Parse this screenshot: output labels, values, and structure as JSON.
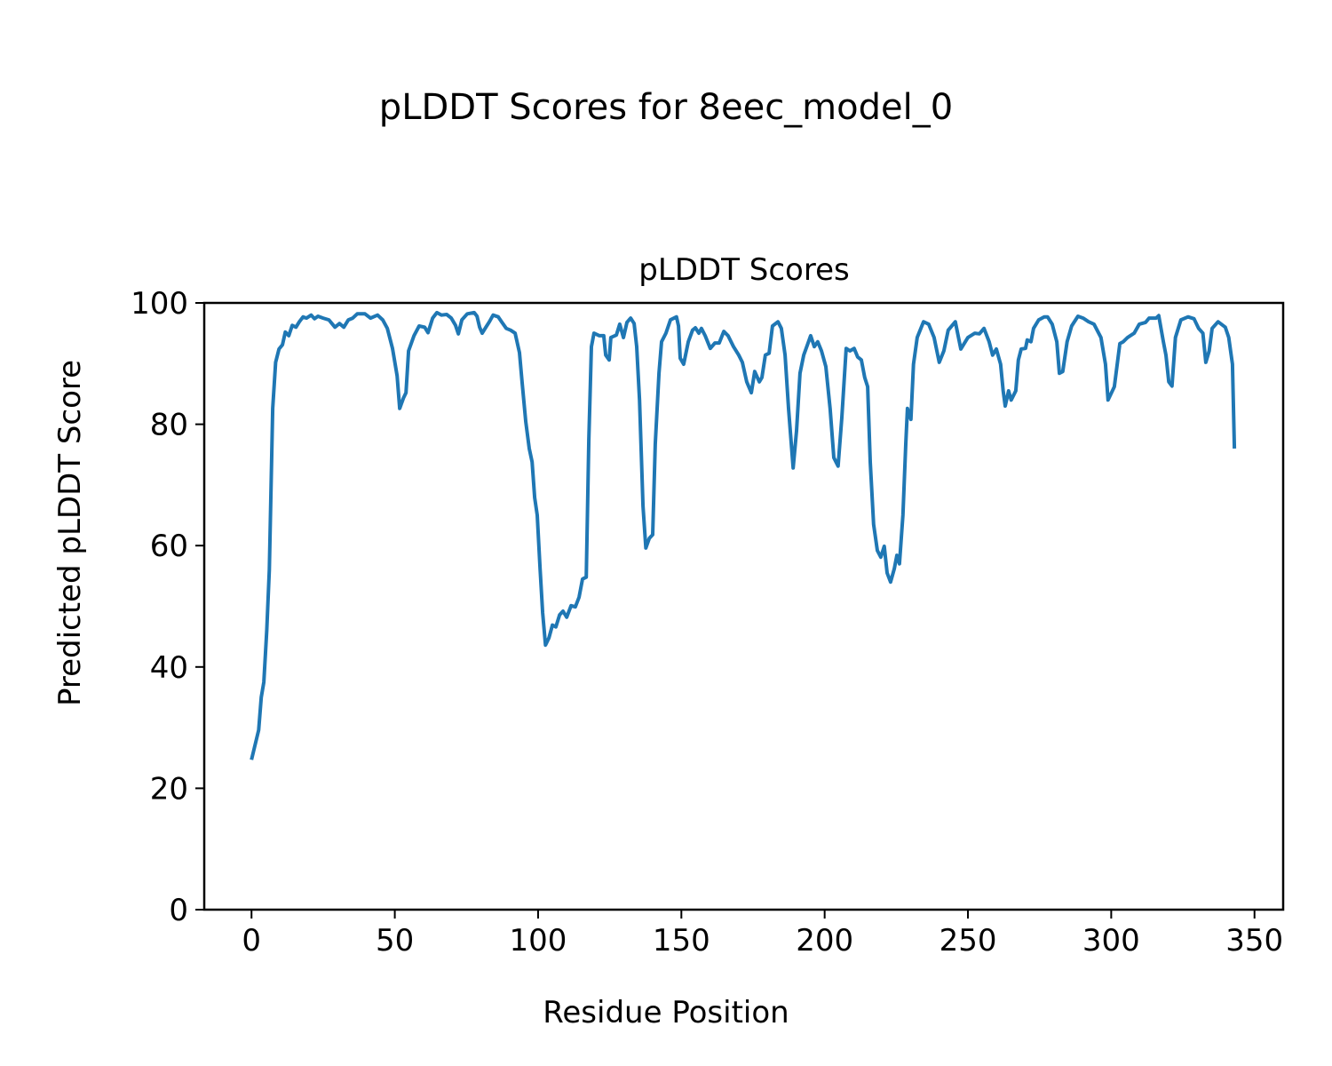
{
  "chart_data": {
    "type": "line",
    "suptitle": "pLDDT Scores for 8eec_model_0",
    "title": "pLDDT Scores",
    "xlabel": "Residue Position",
    "ylabel": "Predicted pLDDT Score",
    "xlim": [
      -16.5,
      360
    ],
    "ylim": [
      0,
      100
    ],
    "xticks": [
      0,
      50,
      100,
      150,
      200,
      250,
      300,
      350
    ],
    "yticks": [
      0,
      20,
      40,
      60,
      80,
      100
    ],
    "grid": false,
    "color": "#1f77b4",
    "series": [
      {
        "name": "pLDDT",
        "x": [
          0,
          2.5,
          3.4,
          4.3,
          5.3,
          6.2,
          7.4,
          8.4,
          9.6,
          10.8,
          11.8,
          13,
          14.2,
          15.5,
          16.7,
          18,
          19.2,
          20.8,
          22,
          23.2,
          25,
          27,
          29.1,
          30.7,
          32.2,
          33.8,
          35.3,
          36.9,
          39.6,
          41.5,
          44,
          45.8,
          47.4,
          49.2,
          50.8,
          51.7,
          53,
          53.9,
          54.8,
          56.7,
          58.5,
          60.4,
          61.6,
          63.2,
          64.7,
          66.3,
          68.1,
          69.7,
          71.2,
          72.2,
          73.4,
          75.3,
          77.7,
          78.7,
          79.6,
          80.5,
          81.8,
          83,
          84.3,
          86.1,
          87.4,
          88.9,
          90.4,
          92,
          93.5,
          94.4,
          95.7,
          96.9,
          97.9,
          98.8,
          99.7,
          100.7,
          101.6,
          102.6,
          103.8,
          105,
          106.2,
          107.5,
          108.7,
          110,
          111.5,
          113,
          114.3,
          115.5,
          116.8,
          117.7,
          118.6,
          119.5,
          121.4,
          122.9,
          123.6,
          124.8,
          125.4,
          127.3,
          128.5,
          129.8,
          131,
          132.3,
          133.5,
          134.4,
          135.4,
          136.6,
          137.6,
          138.8,
          140,
          140.9,
          142.2,
          143.1,
          144.6,
          146.2,
          148.3,
          149,
          149.6,
          150.8,
          152.4,
          153.9,
          154.9,
          156.1,
          157,
          158.3,
          160.1,
          161.7,
          163.2,
          164.8,
          166.3,
          168.2,
          170,
          171.3,
          172.8,
          174.4,
          175.6,
          177.2,
          178.1,
          179.3,
          180.6,
          181.8,
          183.7,
          184.9,
          186.2,
          187.4,
          189,
          190.2,
          191.4,
          192.7,
          194,
          195.1,
          196.4,
          197.6,
          198.9,
          200.4,
          201.9,
          203.2,
          204.7,
          206,
          207.5,
          208.8,
          210.3,
          211.5,
          212.8,
          214,
          215,
          215.9,
          217.1,
          218.4,
          219.6,
          220.8,
          221.8,
          223,
          224.3,
          225.2,
          226.1,
          227.3,
          228.3,
          228.9,
          230.1,
          231,
          232.3,
          234.5,
          236.3,
          238.2,
          240,
          241.6,
          243.1,
          245.6,
          247.5,
          250,
          252.4,
          254,
          255.6,
          257.4,
          258.6,
          259.9,
          261.4,
          262.3,
          263,
          264.2,
          265.1,
          266.7,
          267.6,
          268.6,
          270.1,
          270.7,
          272,
          272.9,
          274.7,
          276.6,
          277.8,
          279.4,
          281,
          281.9,
          283.1,
          284.6,
          286.2,
          288.4,
          290.2,
          292.1,
          294,
          296.4,
          298,
          298.9,
          301.1,
          303,
          304.2,
          305.7,
          308,
          309.8,
          312,
          313.2,
          315.7,
          316.6,
          318.2,
          319.1,
          320.1,
          321.2,
          322.4,
          324.3,
          326.8,
          328.9,
          330.5,
          332,
          333,
          334.2,
          335.2,
          337.3,
          339.8,
          341,
          342.3,
          343
        ],
        "y": [
          24.7,
          29.6,
          35,
          37.5,
          46,
          56,
          82.6,
          90.2,
          92.4,
          93.1,
          95.2,
          94.6,
          96.3,
          96,
          96.9,
          97.7,
          97.5,
          98,
          97.4,
          97.8,
          97.5,
          97.2,
          96,
          96.6,
          96,
          97.2,
          97.5,
          98.2,
          98.2,
          97.5,
          98,
          97.2,
          95.8,
          92.5,
          88,
          82.6,
          84.3,
          85.2,
          92.1,
          94.6,
          96.2,
          96,
          95.1,
          97.5,
          98.4,
          98,
          98.1,
          97.5,
          96.3,
          94.9,
          97.2,
          98.2,
          98.4,
          97.8,
          96,
          95,
          96,
          96.9,
          98,
          97.7,
          96.8,
          95.8,
          95.5,
          95,
          91.8,
          87,
          80.4,
          76,
          73.8,
          67.9,
          65,
          56.2,
          48.9,
          43.6,
          44.8,
          46.9,
          46.6,
          48.6,
          49.2,
          48.2,
          50.1,
          49.9,
          51.5,
          54.5,
          54.8,
          77.5,
          92.8,
          95,
          94.6,
          94.6,
          91.4,
          90.6,
          94.3,
          94.7,
          96.5,
          94.3,
          96.8,
          97.5,
          96.6,
          92.8,
          84,
          66.5,
          59.6,
          61.2,
          61.8,
          76.7,
          88.4,
          93.6,
          95,
          97.2,
          97.7,
          96.2,
          90.9,
          89.9,
          93.6,
          95.5,
          95.9,
          95,
          95.8,
          94.6,
          92.5,
          93.4,
          93.4,
          95.3,
          94.6,
          92.8,
          91.4,
          90.2,
          87,
          85.2,
          88.7,
          87,
          87.7,
          91.4,
          91.7,
          96.2,
          96.9,
          95.8,
          91.4,
          82.6,
          72.8,
          78.9,
          88.4,
          91.4,
          93.1,
          94.6,
          92.8,
          93.6,
          92.1,
          89.5,
          82.6,
          74.5,
          73.1,
          81.1,
          92.5,
          92.1,
          92.5,
          91.1,
          90.6,
          87.7,
          86.2,
          73.8,
          63.5,
          59.2,
          58.1,
          59.9,
          55.5,
          54,
          56.2,
          58.4,
          57,
          65,
          76.7,
          82.6,
          80.8,
          89.9,
          94.3,
          96.9,
          96.5,
          94.3,
          90.2,
          92.1,
          95.5,
          96.9,
          92.4,
          94.3,
          95,
          94.9,
          95.8,
          93.6,
          91.4,
          92.4,
          89.9,
          85.5,
          83,
          85.5,
          84,
          85.5,
          90.6,
          92.4,
          92.5,
          93.9,
          93.6,
          95.8,
          97.2,
          97.7,
          97.7,
          96.5,
          93.6,
          88.4,
          88.7,
          93.6,
          96.2,
          97.8,
          97.5,
          96.9,
          96.5,
          94.3,
          89.9,
          84,
          86.2,
          93.3,
          93.6,
          94.3,
          95,
          96.5,
          96.8,
          97.5,
          97.5,
          97.9,
          93.6,
          91.4,
          87,
          86.3,
          94.3,
          97.2,
          97.7,
          97.4,
          95.8,
          95,
          90.2,
          92.1,
          95.8,
          96.9,
          96,
          94.3,
          89.9,
          76
        ]
      }
    ]
  }
}
